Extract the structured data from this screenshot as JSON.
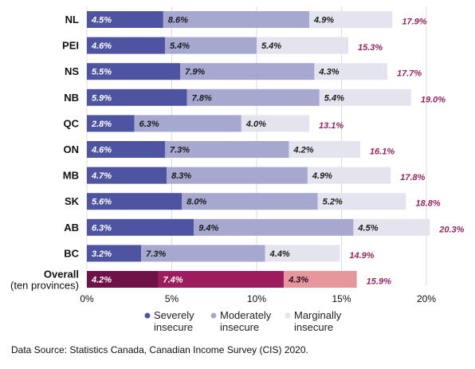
{
  "chart_data": {
    "type": "bar",
    "orientation": "horizontal",
    "stacked": true,
    "categories": [
      "NL",
      "PEI",
      "NS",
      "NB",
      "QC",
      "ON",
      "MB",
      "SK",
      "AB",
      "BC",
      "Overall"
    ],
    "category_sublabels": {
      "Overall": "(ten provinces)"
    },
    "series": [
      {
        "name": "Severely insecure",
        "values": [
          4.5,
          4.6,
          5.5,
          5.9,
          2.8,
          4.6,
          4.7,
          5.6,
          6.3,
          3.2,
          4.2
        ]
      },
      {
        "name": "Moderately insecure",
        "values": [
          8.6,
          5.4,
          7.9,
          7.8,
          6.3,
          7.3,
          8.3,
          8.0,
          9.4,
          7.3,
          7.4
        ]
      },
      {
        "name": "Marginally insecure",
        "values": [
          4.9,
          5.4,
          4.3,
          5.4,
          4.0,
          4.2,
          4.9,
          5.2,
          4.5,
          4.4,
          4.3
        ]
      }
    ],
    "totals": [
      17.9,
      15.3,
      17.7,
      19.0,
      13.1,
      16.1,
      17.8,
      18.8,
      20.3,
      14.9,
      15.9
    ],
    "xlim": [
      0,
      20
    ],
    "xticks": [
      "0%",
      "5%",
      "10%",
      "15%",
      "20%"
    ],
    "grid": "vertical",
    "legend_position": "bottom",
    "colors": {
      "severe": "#4f54a2",
      "moderate": "#a6a8d0",
      "marginal": "#e4e4ef",
      "overall_severe": "#6e1247",
      "overall_moderate": "#9c1c5f",
      "overall_marginal": "#e6979c",
      "total_label": "#96245f",
      "grid": "#dcdcdc"
    }
  },
  "footer": {
    "source": "Data Source: Statistics Canada, Canadian Income Survey (CIS) 2020."
  }
}
